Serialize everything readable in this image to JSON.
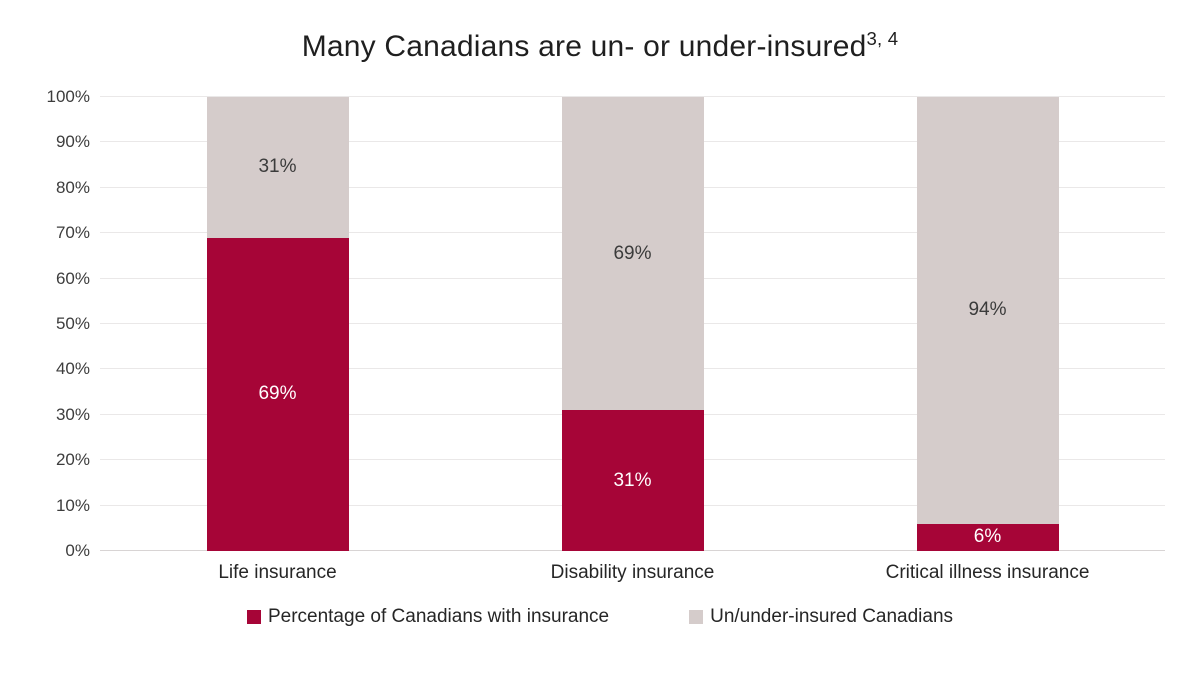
{
  "chart_data": {
    "type": "bar",
    "stacked": true,
    "title": "Many Canadians are un- or under-insured",
    "title_superscript": "3, 4",
    "categories": [
      "Life insurance",
      "Disability insurance",
      "Critical illness insurance"
    ],
    "series": [
      {
        "name": "Percentage of Canadians with insurance",
        "color": "#A60537",
        "label_color": "#FFFFFF",
        "values": [
          69,
          31,
          6
        ]
      },
      {
        "name": "Un/under-insured Canadians",
        "color": "#D5CCCB",
        "label_color": "#3B3B3B",
        "values": [
          31,
          69,
          94
        ]
      }
    ],
    "value_suffix": "%",
    "ylim": [
      0,
      100
    ],
    "yticks": [
      "0%",
      "10%",
      "20%",
      "30%",
      "40%",
      "50%",
      "60%",
      "70%",
      "80%",
      "90%",
      "100%"
    ],
    "grid": true,
    "legend_position": "bottom"
  }
}
